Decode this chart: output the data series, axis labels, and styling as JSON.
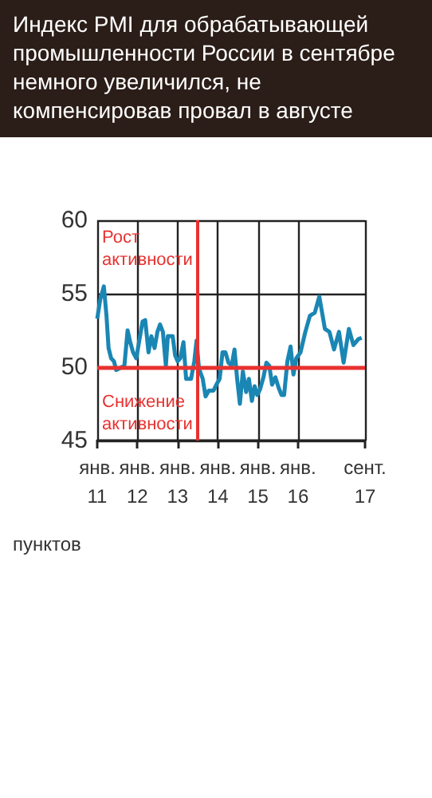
{
  "chart_data": {
    "type": "line",
    "title": "Индекс PMI для обрабатывающей промышленности России в сентябре немного увеличился, не компенсировав провал в августе",
    "x": [
      "2011-01-01",
      "2011-01-28",
      "2011-03-02",
      "2011-03-26",
      "2011-04-14",
      "2011-05-07",
      "2011-06-02",
      "2011-06-22",
      "2011-08-13",
      "2011-09-05",
      "2011-10-04",
      "2011-10-28",
      "2011-11-23",
      "2011-12-22",
      "2012-01-25",
      "2012-02-17",
      "2012-03-12",
      "2012-04-11",
      "2012-05-07",
      "2012-06-05",
      "2012-07-01",
      "2012-07-25",
      "2012-08-20",
      "2012-09-16",
      "2012-10-04",
      "2012-11-17",
      "2012-12-09",
      "2013-01-01",
      "2013-01-25",
      "2013-02-23",
      "2013-03-19",
      "2013-05-03",
      "2013-06-02",
      "2013-06-22",
      "2013-07-14",
      "2013-08-17",
      "2013-09-12",
      "2013-10-11",
      "2013-11-23",
      "2013-12-19",
      "2014-01-18",
      "2014-02-13",
      "2014-03-12",
      "2014-04-08",
      "2014-05-07",
      "2014-06-02",
      "2014-06-26",
      "2014-07-21",
      "2014-08-17",
      "2014-09-16",
      "2014-10-11",
      "2014-11-07",
      "2014-12-02",
      "2014-12-26",
      "2015-01-21",
      "2015-02-20",
      "2015-03-19",
      "2015-04-14",
      "2015-05-10",
      "2015-06-09",
      "2015-07-08",
      "2015-08-03",
      "2015-08-27",
      "2015-09-26",
      "2015-10-25",
      "2015-11-20",
      "2015-12-16",
      "2016-01-23",
      "2016-03-07",
      "2016-04-18",
      "2016-06-01",
      "2016-07-12",
      "2016-09-01",
      "2016-10-12",
      "2016-11-23",
      "2017-01-07",
      "2017-02-18",
      "2017-04-07",
      "2017-05-18",
      "2017-07-01",
      "2017-08-01"
    ],
    "series": [
      {
        "color": "#1a86b4",
        "values": [
          53.3,
          54.6,
          55.5,
          53.5,
          51.3,
          50.6,
          50.4,
          49.8,
          50.0,
          50.1,
          52.5,
          51.7,
          51.0,
          50.6,
          52.1,
          53.1,
          53.2,
          51.0,
          52.1,
          51.3,
          52.4,
          52.9,
          52.4,
          50.1,
          52.1,
          52.1,
          50.8,
          50.4,
          50.6,
          51.7,
          49.2,
          49.2,
          50.4,
          51.8,
          49.9,
          49.2,
          48.0,
          48.4,
          48.4,
          48.8,
          49.2,
          51.0,
          51.0,
          50.3,
          50.1,
          51.2,
          49.2,
          47.5,
          49.7,
          48.3,
          49.2,
          47.7,
          48.7,
          48.1,
          48.5,
          49.3,
          50.3,
          50.1,
          48.8,
          49.3,
          48.6,
          48.1,
          48.1,
          50.4,
          51.4,
          49.5,
          50.6,
          51.0,
          52.4,
          53.5,
          53.7,
          54.8,
          52.6,
          52.4,
          51.2,
          52.4,
          50.3,
          52.6,
          51.5,
          51.9,
          52.0
        ]
      }
    ],
    "xlim": [
      "2011-01",
      "2017-09"
    ],
    "xticks": [
      {
        "value": "2011-01",
        "label": "янв. 11"
      },
      {
        "value": "2012-01",
        "label": "янв. 12"
      },
      {
        "value": "2013-01",
        "label": "янв. 13"
      },
      {
        "value": "2014-01",
        "label": "янв. 14"
      },
      {
        "value": "2015-01",
        "label": "янв. 15"
      },
      {
        "value": "2016-01",
        "label": "янв. 16"
      },
      {
        "value": "2017-09",
        "label": "сент. 17"
      }
    ],
    "ylim": [
      45,
      60
    ],
    "yticks": [
      45,
      50,
      55,
      60
    ],
    "grid": true,
    "ref_lines": [
      {
        "axis": "y",
        "value": 50,
        "color": "#e8312f"
      },
      {
        "axis": "x",
        "value": "2013-07-01",
        "color": "#e8312f"
      }
    ],
    "annotations": [
      "Рост активности",
      "Снижение активности",
      "пунктов"
    ]
  }
}
